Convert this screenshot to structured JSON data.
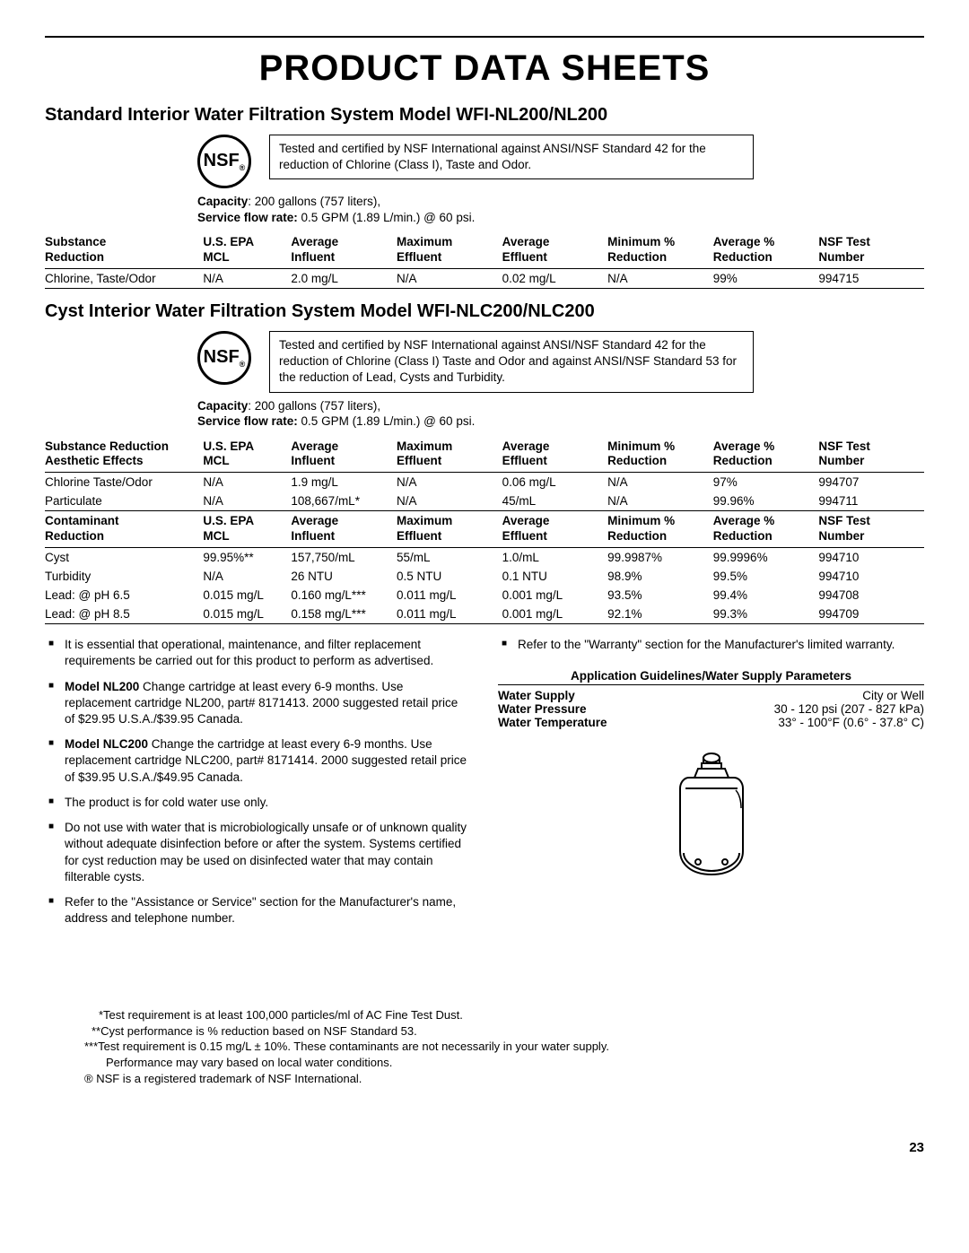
{
  "page": {
    "title": "PRODUCT DATA SHEETS",
    "page_number": "23"
  },
  "section1": {
    "title": "Standard Interior Water Filtration System Model WFI-NL200/NL200",
    "nsf_label": "NSF",
    "cert_text": "Tested and certified by NSF International against ANSI/NSF Standard 42 for the reduction of Chlorine (Class I), Taste and Odor.",
    "capacity_label": "Capacity",
    "capacity_value": ": 200 gallons (757 liters),",
    "flow_label": "Service flow rate:",
    "flow_value": " 0.5 GPM (1.89 L/min.) @ 60 psi.",
    "headers": [
      "Substance\nReduction",
      "U.S. EPA\nMCL",
      "Average\nInfluent",
      "Maximum\nEffluent",
      "Average\nEffluent",
      "Minimum %\nReduction",
      "Average %\nReduction",
      "NSF Test\nNumber"
    ],
    "row": [
      "Chlorine, Taste/Odor",
      "N/A",
      "2.0 mg/L",
      "N/A",
      "0.02 mg/L",
      "N/A",
      "99%",
      "994715"
    ]
  },
  "section2": {
    "title": "Cyst Interior Water Filtration System Model WFI-NLC200/NLC200",
    "nsf_label": "NSF",
    "cert_text": "Tested and certified by NSF International against ANSI/NSF Standard 42 for the reduction of Chlorine (Class I) Taste and Odor and against ANSI/NSF Standard 53 for the reduction of Lead, Cysts and Turbidity.",
    "capacity_label": "Capacity",
    "capacity_value": ": 200 gallons (757 liters),",
    "flow_label": "Service flow rate:",
    "flow_value": " 0.5 GPM (1.89 L/min.) @ 60 psi.",
    "headers1": [
      "Substance Reduction\nAesthetic Effects",
      "U.S. EPA\nMCL",
      "Average\nInfluent",
      "Maximum\nEffluent",
      "Average\nEffluent",
      "Minimum %\nReduction",
      "Average %\nReduction",
      "NSF Test\nNumber"
    ],
    "rows1": [
      [
        "Chlorine Taste/Odor",
        "N/A",
        "1.9 mg/L",
        "N/A",
        "0.06 mg/L",
        "N/A",
        "97%",
        "994707"
      ],
      [
        "Particulate",
        "N/A",
        "108,667/mL*",
        "N/A",
        "45/mL",
        "N/A",
        "99.96%",
        "994711"
      ]
    ],
    "headers2": [
      "Contaminant\nReduction",
      "U.S. EPA\nMCL",
      "Average\nInfluent",
      "Maximum\nEffluent",
      "Average\nEffluent",
      "Minimum %\nReduction",
      "Average %\nReduction",
      "NSF Test\nNumber"
    ],
    "rows2": [
      [
        "Cyst",
        "99.95%**",
        "157,750/mL",
        "55/mL",
        "1.0/mL",
        "99.9987%",
        "99.9996%",
        "994710"
      ],
      [
        "Turbidity",
        "N/A",
        "26 NTU",
        "0.5 NTU",
        "0.1 NTU",
        "98.9%",
        "99.5%",
        "994710"
      ],
      [
        "Lead: @ pH 6.5",
        "0.015 mg/L",
        "0.160 mg/L***",
        "0.011 mg/L",
        "0.001 mg/L",
        "93.5%",
        "99.4%",
        "994708"
      ],
      [
        "Lead: @ pH 8.5",
        "0.015 mg/L",
        "0.158 mg/L***",
        "0.011 mg/L",
        "0.001 mg/L",
        "92.1%",
        "99.3%",
        "994709"
      ]
    ]
  },
  "notes_left": [
    "It is essential that operational, maintenance, and filter replacement requirements be carried out for this product to perform as advertised.",
    "<b>Model NL200</b> Change cartridge at least every 6-9 months. Use replacement cartridge NL200, part# 8171413. 2000 suggested retail price of $29.95 U.S.A./$39.95 Canada.",
    "<b>Model NLC200</b> Change the cartridge at least every 6-9 months. Use replacement cartridge NLC200, part# 8171414. 2000 suggested retail price of $39.95 U.S.A./$49.95 Canada.",
    "The product is for cold water use only.",
    "Do not use with water that is microbiologically unsafe or of unknown quality without adequate disinfection before or after the system. Systems certified for cyst reduction may be used on disinfected water that may contain filterable cysts.",
    "Refer to the \"Assistance or Service\" section for the Manufacturer's name, address and telephone number."
  ],
  "notes_right": [
    "Refer to the \"Warranty\" section for the Manufacturer's limited warranty."
  ],
  "app_guidelines": {
    "title": "Application Guidelines/Water Supply Parameters",
    "rows": [
      [
        "Water Supply",
        "City or Well"
      ],
      [
        "Water Pressure",
        "30 - 120 psi (207 - 827 kPa)"
      ],
      [
        "Water Temperature",
        "33° - 100°F (0.6° - 37.8° C)"
      ]
    ]
  },
  "footnotes": [
    "*Test requirement is at least 100,000 particles/ml of AC Fine Test Dust.",
    "**Cyst performance is % reduction based on NSF Standard 53.",
    "***Test requirement is 0.15 mg/L ± 10%. These contaminants are not necessarily in your water supply.",
    "Performance may vary based on local water conditions.",
    "® NSF is a registered trademark of NSF International."
  ]
}
